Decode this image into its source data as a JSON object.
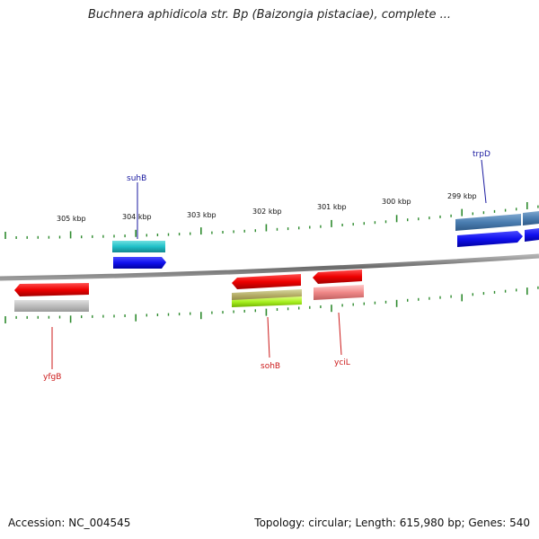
{
  "title": "Buchnera aphidicola str. Bp (Baizongia pistaciae), complete ...",
  "footer": {
    "accession": "Accession: NC_004545",
    "summary": "Topology: circular; Length: 615,980 bp; Genes: 540"
  },
  "colors": {
    "backbone": "#7a7a7a",
    "tick": "#2e8b2e",
    "forward_label": "#1a1aa0",
    "reverse_label": "#cc1a1a"
  },
  "kbp_labels": [
    "305 kbp",
    "304 kbp",
    "303 kbp",
    "302 kbp",
    "301 kbp",
    "300 kbp",
    "299 kbp"
  ],
  "genes": [
    {
      "name": "suhB",
      "strand": "forward"
    },
    {
      "name": "trpD",
      "strand": "forward"
    },
    {
      "name": "yfgB",
      "strand": "reverse"
    },
    {
      "name": "sohB",
      "strand": "reverse"
    },
    {
      "name": "yciL",
      "strand": "reverse"
    }
  ]
}
